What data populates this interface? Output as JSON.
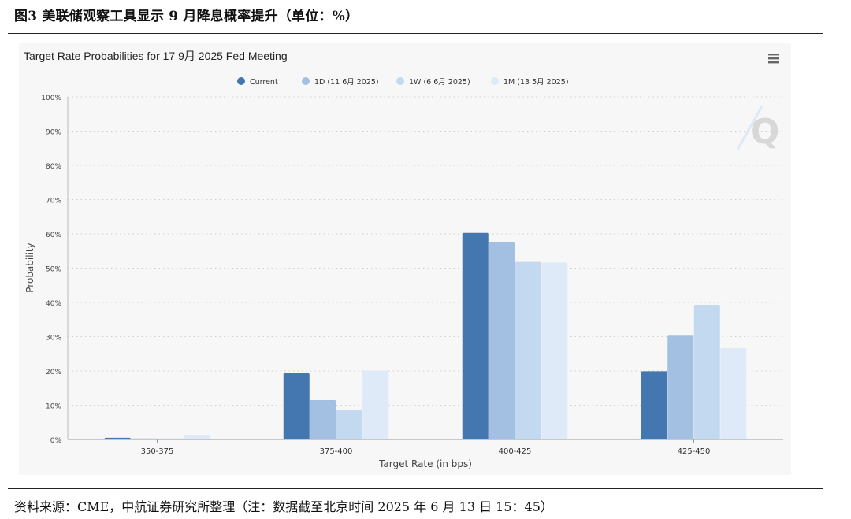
{
  "figure": {
    "title": "图3 美联储观察工具显示 9 月降息概率提升（单位：%）",
    "source": "资料来源：CME，中航证券研究所整理（注：数据截至北京时间 2025 年 6 月 13 日 15：45）"
  },
  "chart_data": {
    "type": "bar",
    "title": "Target Rate Probabilities for 17 9月 2025 Fed Meeting",
    "xlabel": "Target Rate (in bps)",
    "ylabel": "Probability",
    "ylim": [
      0,
      100
    ],
    "yticks": [
      "0%",
      "10%",
      "20%",
      "30%",
      "40%",
      "50%",
      "60%",
      "70%",
      "80%",
      "90%",
      "100%"
    ],
    "grid": true,
    "legend_position": "top-center",
    "categories": [
      "350-375",
      "375-400",
      "400-425",
      "425-450"
    ],
    "series": [
      {
        "name": "Current",
        "color": "#4477b0",
        "values": [
          0.5,
          19.3,
          60.3,
          19.9
        ]
      },
      {
        "name": "1D (11 6月 2025)",
        "color": "#a3c0e2",
        "values": [
          0.3,
          11.5,
          57.7,
          30.3
        ]
      },
      {
        "name": "1W (6 6月 2025)",
        "color": "#c3d9ef",
        "values": [
          0.3,
          8.7,
          51.8,
          39.3
        ]
      },
      {
        "name": "1M (13 5月 2025)",
        "color": "#deeaf7",
        "values": [
          1.4,
          20.1,
          51.6,
          26.7
        ]
      }
    ],
    "watermark": "Q",
    "menu_icon": "hamburger-menu-icon"
  }
}
